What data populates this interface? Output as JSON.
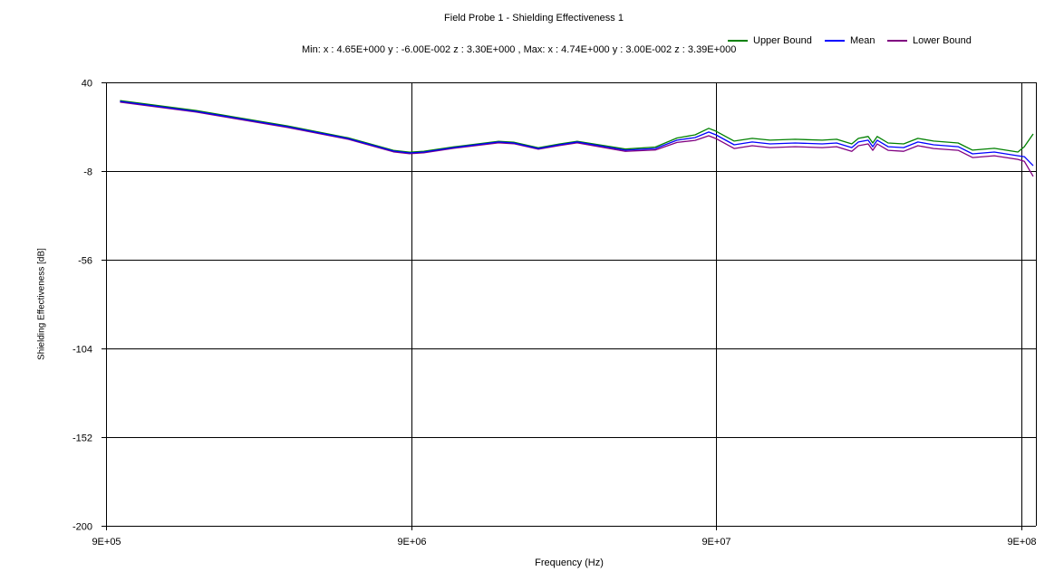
{
  "chart_data": {
    "type": "line",
    "title": "Field Probe 1 - Shielding Effectiveness 1",
    "subtitle": "Min:  x : 4.65E+000   y : -6.00E-002  z : 3.30E+000  ,  Max:  x : 4.74E+000   y : 3.00E-002   z : 3.39E+000",
    "xlabel": "Frequency (Hz)",
    "ylabel": "Shielding Effectiveness [dB]",
    "x_scale": "log",
    "xlim": [
      900000,
      1000000000
    ],
    "ylim": [
      -200,
      40
    ],
    "x_ticks": [
      900000,
      9000000,
      90000000,
      900000000
    ],
    "x_tick_labels": [
      "9E+05",
      "9E+06",
      "9E+07",
      "9E+08"
    ],
    "y_ticks": [
      40,
      -8,
      -56,
      -104,
      -152,
      -200
    ],
    "y_tick_labels": [
      "40",
      "-8",
      "-56",
      "-104",
      "-152",
      "-200"
    ],
    "grid": true,
    "legend_position": "top-right",
    "x": [
      1000000.0,
      1780000.0,
      3540000.0,
      5590000.0,
      7870000.0,
      8900000.0,
      9900000.0,
      12400000.0,
      17400000.0,
      19500000.0,
      23500000.0,
      27500000.0,
      31500000.0,
      45300000.0,
      56800000.0,
      66900000.0,
      76700000.0,
      85000000.0,
      89700000.0,
      103000000.0,
      118000000.0,
      135000000.0,
      163000000.0,
      200000000.0,
      223000000.0,
      250000000.0,
      263000000.0,
      283000000.0,
      293000000.0,
      303000000.0,
      329000000.0,
      370000000.0,
      412000000.0,
      464000000.0,
      558000000.0,
      622000000.0,
      733000000.0,
      876000000.0,
      919000000.0,
      983000000.0
    ],
    "series": [
      {
        "name": "Upper Bound",
        "color": "#008000",
        "values": [
          30.1,
          24.7,
          16.4,
          10.0,
          3.2,
          2.2,
          2.7,
          5.1,
          8.1,
          7.6,
          4.6,
          6.6,
          8.1,
          3.9,
          5.0,
          9.9,
          11.6,
          15.1,
          13.6,
          8.2,
          9.7,
          8.7,
          9.2,
          8.7,
          9.2,
          6.7,
          9.7,
          10.7,
          7.2,
          10.7,
          7.2,
          6.7,
          9.7,
          8.2,
          7.2,
          3.3,
          4.3,
          2.3,
          5.2,
          12.1
        ]
      },
      {
        "name": "Mean",
        "color": "#0000ff",
        "values": [
          29.7,
          24.3,
          16.0,
          9.6,
          2.8,
          1.8,
          2.3,
          4.7,
          7.7,
          7.2,
          4.2,
          6.2,
          7.7,
          3.3,
          4.2,
          8.7,
          10.1,
          13.1,
          11.6,
          6.2,
          7.7,
          6.7,
          7.2,
          6.7,
          7.2,
          4.7,
          7.7,
          8.7,
          5.2,
          8.7,
          5.2,
          4.7,
          7.7,
          6.2,
          5.2,
          1.3,
          2.3,
          0.3,
          -0.2,
          -5.1
        ]
      },
      {
        "name": "Lower Bound",
        "color": "#800080",
        "values": [
          29.3,
          23.9,
          15.6,
          9.2,
          2.4,
          1.4,
          1.9,
          4.3,
          7.3,
          6.8,
          3.8,
          5.8,
          7.3,
          2.7,
          3.4,
          7.5,
          8.6,
          11.1,
          9.6,
          4.2,
          5.7,
          4.7,
          5.2,
          4.7,
          5.2,
          2.7,
          5.7,
          6.7,
          3.2,
          6.7,
          3.2,
          2.7,
          5.7,
          4.2,
          3.2,
          -0.7,
          0.3,
          -1.7,
          -2.7,
          -10.9
        ]
      }
    ]
  }
}
